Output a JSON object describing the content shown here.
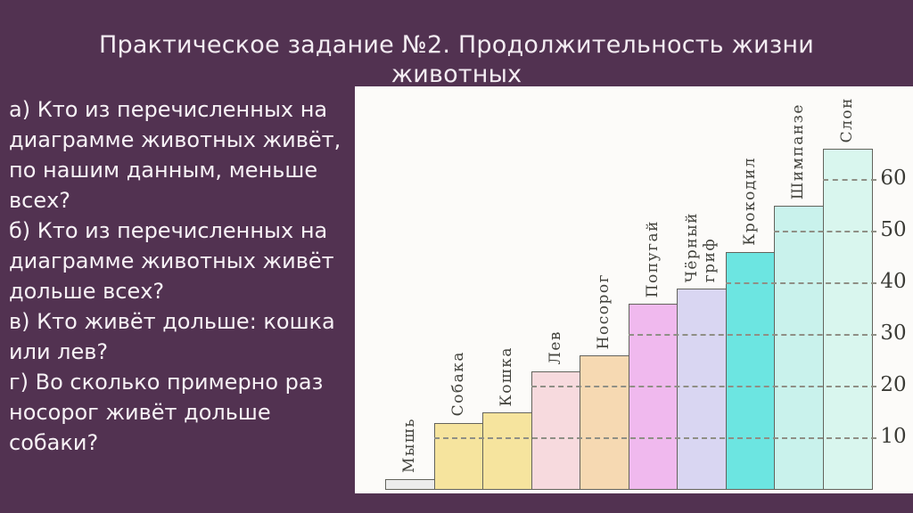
{
  "slide": {
    "title": "Практическое задание №2. Продолжительность жизни животных",
    "background_color": "#523251",
    "title_color": "#f3ecf2",
    "questions": [
      "а) Кто из перечисленных на диаграмме животных живёт, по нашим данным, меньше всех?",
      "б) Кто из перечисленных на диаграмме животных живёт дольше всех?",
      "в) Кто живёт дольше: кошка или лев?",
      "г) Во сколько примерно раз носорог живёт дольше собаки?"
    ]
  },
  "chart_data": {
    "type": "bar",
    "title": "",
    "xlabel": "",
    "ylabel": "",
    "categories": [
      "Мышь",
      "Собака",
      "Кошка",
      "Лев",
      "Носорог",
      "Попугай",
      "Чёрный гриф",
      "Крокодил",
      "Шимпанзе",
      "Слон"
    ],
    "values": [
      2,
      13,
      15,
      23,
      26,
      36,
      39,
      46,
      55,
      66
    ],
    "ylim": [
      0,
      70
    ],
    "yticks": [
      10,
      20,
      30,
      40,
      50,
      60
    ],
    "grid": "dashed horizontal lines; each line starts at the first bar tall enough to cross it and runs to the right edge of the bars",
    "legend": "none",
    "panel_background": "#fcfbf9",
    "bar_colors": [
      "#ececec",
      "#f6e49e",
      "#f6e49e",
      "#f7dade",
      "#f6d9b2",
      "#f0b9ee",
      "#d9d6f2",
      "#6ce5e1",
      "#c9f2ec",
      "#d9f6ee"
    ],
    "bar_border_color": "#63635c",
    "grid_color": "#8f8f85",
    "label_color": "#41413b",
    "tick_color": "#3a3a35"
  }
}
